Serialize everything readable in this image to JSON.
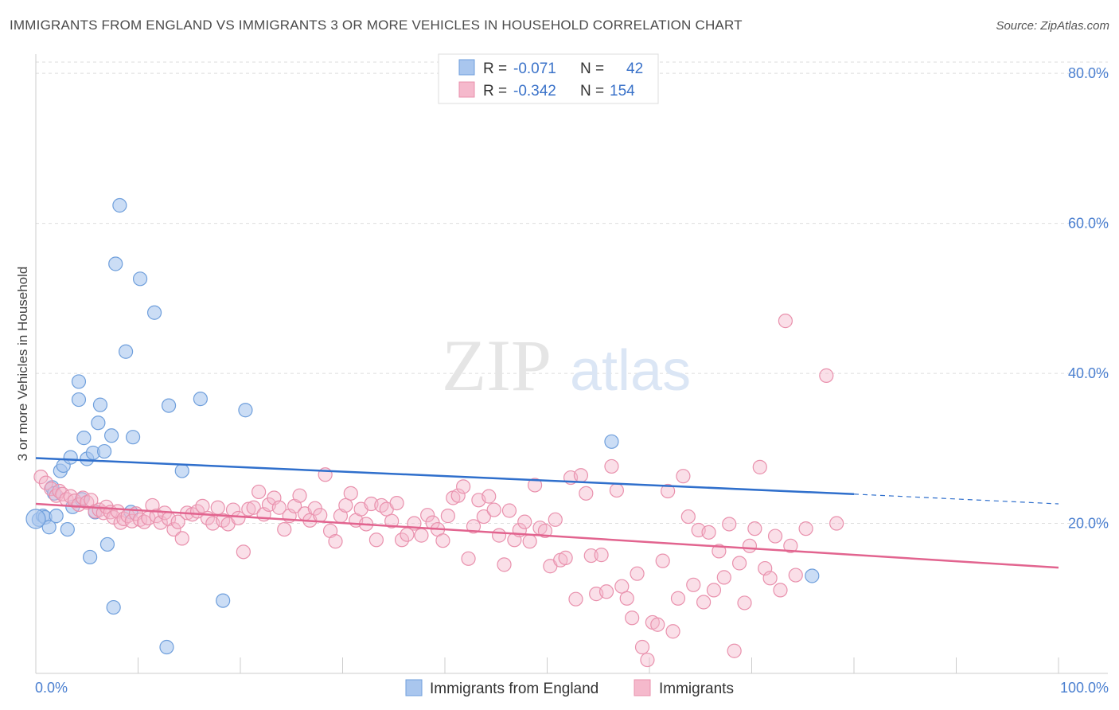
{
  "title": "IMMIGRANTS FROM ENGLAND VS IMMIGRANTS 3 OR MORE VEHICLES IN HOUSEHOLD CORRELATION CHART",
  "source": "Source: ZipAtlas.com",
  "watermark": {
    "zip": "ZIP",
    "atlas": "atlas"
  },
  "colors": {
    "blue_fill": "#a9c6ee",
    "blue_stroke": "#6f9fdc",
    "blue_line": "#2f6fcc",
    "pink_fill": "#f5b9cc",
    "pink_stroke": "#e991ad",
    "pink_line": "#e2648f",
    "axis_text": "#4a7fd0",
    "grid": "#dddddd"
  },
  "legend": {
    "rows": [
      {
        "r_label": "R =",
        "r_value": "-0.071",
        "n_label": "N =",
        "n_value": "42"
      },
      {
        "r_label": "R =",
        "r_value": "-0.342",
        "n_label": "N =",
        "n_value": "154"
      }
    ]
  },
  "bottom_legend": [
    "Immigrants from England",
    "Immigrants"
  ],
  "chart_data": {
    "type": "scatter",
    "title": "IMMIGRANTS FROM ENGLAND VS IMMIGRANTS 3 OR MORE VEHICLES IN HOUSEHOLD CORRELATION CHART",
    "xlabel": "",
    "ylabel": "3 or more Vehicles in Household",
    "xlim": [
      0,
      100
    ],
    "ylim": [
      0,
      81.5
    ],
    "y_ticks": [
      20,
      40,
      60,
      80
    ],
    "y_tick_labels": [
      "20.0%",
      "40.0%",
      "60.0%",
      "80.0%"
    ],
    "x_tick_labels": [
      "0.0%",
      "100.0%"
    ],
    "grid": true,
    "legend_position": "top-center",
    "series": [
      {
        "name": "Immigrants from England",
        "r": -0.071,
        "n": 42,
        "trend": {
          "x": [
            0,
            80
          ],
          "y": [
            28.7,
            23.9
          ],
          "dashed_to": 100,
          "dashed_y": 22.6
        },
        "points": [
          [
            0.3,
            20.5
          ],
          [
            0.7,
            21.0
          ],
          [
            0.9,
            20.8
          ],
          [
            1.3,
            19.5
          ],
          [
            1.6,
            24.8
          ],
          [
            1.8,
            24.0
          ],
          [
            2.0,
            21.0
          ],
          [
            2.4,
            27.0
          ],
          [
            2.7,
            27.7
          ],
          [
            3.1,
            19.2
          ],
          [
            3.4,
            28.8
          ],
          [
            3.6,
            22.2
          ],
          [
            4.2,
            38.9
          ],
          [
            4.2,
            36.5
          ],
          [
            4.5,
            23.2
          ],
          [
            4.7,
            31.4
          ],
          [
            5.0,
            28.6
          ],
          [
            5.3,
            15.5
          ],
          [
            5.6,
            29.4
          ],
          [
            5.8,
            21.5
          ],
          [
            6.1,
            33.4
          ],
          [
            6.3,
            35.8
          ],
          [
            6.7,
            29.6
          ],
          [
            7.0,
            17.2
          ],
          [
            7.4,
            31.7
          ],
          [
            7.6,
            8.8
          ],
          [
            7.8,
            54.6
          ],
          [
            8.2,
            62.4
          ],
          [
            8.8,
            42.9
          ],
          [
            9.3,
            21.5
          ],
          [
            9.5,
            31.5
          ],
          [
            10.2,
            52.6
          ],
          [
            11.6,
            48.1
          ],
          [
            12.8,
            3.5
          ],
          [
            13.0,
            35.7
          ],
          [
            14.3,
            27.0
          ],
          [
            16.1,
            36.6
          ],
          [
            18.3,
            9.7
          ],
          [
            20.5,
            35.1
          ],
          [
            56.3,
            30.9
          ],
          [
            75.9,
            13.0
          ],
          [
            0.0,
            20.6
          ]
        ]
      },
      {
        "name": "Immigrants",
        "r": -0.342,
        "n": 154,
        "trend": {
          "x": [
            0,
            100
          ],
          "y": [
            22.6,
            14.1
          ]
        },
        "points": [
          [
            0.5,
            26.2
          ],
          [
            1.0,
            25.4
          ],
          [
            1.5,
            24.6
          ],
          [
            2.0,
            23.7
          ],
          [
            2.3,
            24.3
          ],
          [
            2.6,
            23.9
          ],
          [
            3.0,
            23.2
          ],
          [
            3.4,
            23.6
          ],
          [
            3.8,
            23.0
          ],
          [
            4.2,
            22.5
          ],
          [
            4.6,
            23.4
          ],
          [
            5.0,
            22.8
          ],
          [
            5.4,
            23.1
          ],
          [
            5.8,
            21.6
          ],
          [
            6.2,
            21.8
          ],
          [
            6.6,
            21.4
          ],
          [
            6.9,
            22.2
          ],
          [
            7.3,
            21.5
          ],
          [
            7.6,
            20.8
          ],
          [
            8.0,
            21.6
          ],
          [
            8.3,
            20.1
          ],
          [
            8.6,
            20.6
          ],
          [
            9.0,
            21.0
          ],
          [
            9.4,
            20.3
          ],
          [
            9.8,
            21.3
          ],
          [
            10.2,
            20.5
          ],
          [
            10.6,
            20.2
          ],
          [
            11.0,
            20.7
          ],
          [
            11.4,
            22.4
          ],
          [
            11.8,
            21.0
          ],
          [
            12.2,
            20.1
          ],
          [
            12.6,
            21.4
          ],
          [
            13.0,
            20.6
          ],
          [
            13.5,
            19.2
          ],
          [
            13.9,
            20.2
          ],
          [
            14.3,
            18.0
          ],
          [
            14.8,
            21.4
          ],
          [
            15.3,
            21.2
          ],
          [
            15.8,
            21.6
          ],
          [
            16.3,
            22.3
          ],
          [
            16.8,
            20.7
          ],
          [
            17.3,
            20.0
          ],
          [
            17.8,
            22.1
          ],
          [
            18.3,
            20.4
          ],
          [
            18.8,
            19.9
          ],
          [
            19.3,
            21.8
          ],
          [
            19.8,
            20.7
          ],
          [
            20.3,
            16.2
          ],
          [
            20.8,
            21.9
          ],
          [
            21.3,
            22.1
          ],
          [
            21.8,
            24.2
          ],
          [
            22.3,
            21.2
          ],
          [
            22.8,
            22.5
          ],
          [
            23.3,
            23.4
          ],
          [
            23.8,
            22.1
          ],
          [
            24.3,
            19.2
          ],
          [
            24.8,
            21.0
          ],
          [
            25.3,
            22.3
          ],
          [
            25.8,
            23.7
          ],
          [
            26.3,
            21.3
          ],
          [
            26.8,
            20.4
          ],
          [
            27.3,
            22.0
          ],
          [
            27.8,
            21.1
          ],
          [
            28.3,
            26.5
          ],
          [
            28.8,
            19.0
          ],
          [
            29.3,
            17.6
          ],
          [
            29.8,
            21.0
          ],
          [
            30.3,
            22.4
          ],
          [
            30.8,
            24.0
          ],
          [
            31.3,
            20.4
          ],
          [
            31.8,
            21.9
          ],
          [
            32.3,
            19.9
          ],
          [
            32.8,
            22.6
          ],
          [
            33.3,
            17.8
          ],
          [
            33.8,
            22.4
          ],
          [
            34.3,
            21.9
          ],
          [
            34.8,
            20.3
          ],
          [
            35.3,
            22.7
          ],
          [
            35.8,
            17.8
          ],
          [
            36.3,
            18.5
          ],
          [
            37.0,
            20.0
          ],
          [
            37.7,
            18.4
          ],
          [
            38.3,
            21.1
          ],
          [
            38.8,
            20.1
          ],
          [
            39.3,
            19.2
          ],
          [
            39.8,
            17.7
          ],
          [
            40.3,
            21.0
          ],
          [
            40.8,
            23.4
          ],
          [
            41.3,
            23.7
          ],
          [
            41.8,
            24.9
          ],
          [
            42.3,
            15.3
          ],
          [
            42.8,
            19.6
          ],
          [
            43.3,
            23.1
          ],
          [
            43.8,
            20.9
          ],
          [
            44.3,
            23.6
          ],
          [
            44.8,
            21.8
          ],
          [
            45.3,
            18.4
          ],
          [
            45.8,
            14.5
          ],
          [
            46.3,
            21.7
          ],
          [
            46.8,
            17.8
          ],
          [
            47.3,
            19.1
          ],
          [
            47.8,
            20.2
          ],
          [
            48.3,
            17.6
          ],
          [
            48.8,
            25.1
          ],
          [
            49.3,
            19.4
          ],
          [
            49.8,
            19.0
          ],
          [
            50.3,
            14.3
          ],
          [
            50.8,
            20.5
          ],
          [
            51.3,
            15.1
          ],
          [
            51.8,
            15.4
          ],
          [
            52.3,
            26.1
          ],
          [
            52.8,
            9.9
          ],
          [
            53.3,
            26.4
          ],
          [
            53.8,
            24.0
          ],
          [
            54.3,
            15.7
          ],
          [
            54.8,
            10.6
          ],
          [
            55.3,
            15.8
          ],
          [
            55.8,
            10.9
          ],
          [
            56.3,
            27.6
          ],
          [
            56.8,
            24.4
          ],
          [
            57.3,
            11.6
          ],
          [
            57.8,
            10.0
          ],
          [
            58.3,
            7.4
          ],
          [
            58.8,
            13.3
          ],
          [
            59.3,
            3.5
          ],
          [
            59.8,
            1.8
          ],
          [
            60.3,
            6.8
          ],
          [
            60.8,
            6.5
          ],
          [
            61.3,
            15.0
          ],
          [
            61.8,
            24.3
          ],
          [
            62.3,
            5.6
          ],
          [
            62.8,
            10.0
          ],
          [
            63.3,
            26.3
          ],
          [
            63.8,
            20.9
          ],
          [
            64.3,
            11.8
          ],
          [
            64.8,
            19.1
          ],
          [
            65.3,
            9.5
          ],
          [
            65.8,
            18.8
          ],
          [
            66.3,
            11.1
          ],
          [
            66.8,
            16.3
          ],
          [
            67.3,
            12.8
          ],
          [
            67.8,
            19.9
          ],
          [
            68.3,
            3.0
          ],
          [
            68.8,
            14.7
          ],
          [
            69.3,
            9.4
          ],
          [
            69.8,
            17.0
          ],
          [
            70.3,
            19.3
          ],
          [
            70.8,
            27.5
          ],
          [
            71.3,
            14.0
          ],
          [
            71.8,
            12.7
          ],
          [
            72.3,
            18.3
          ],
          [
            72.8,
            11.1
          ],
          [
            73.3,
            47.0
          ],
          [
            73.8,
            17.0
          ],
          [
            74.3,
            13.1
          ],
          [
            75.3,
            19.3
          ],
          [
            77.3,
            39.7
          ],
          [
            78.3,
            20.0
          ]
        ]
      }
    ]
  }
}
